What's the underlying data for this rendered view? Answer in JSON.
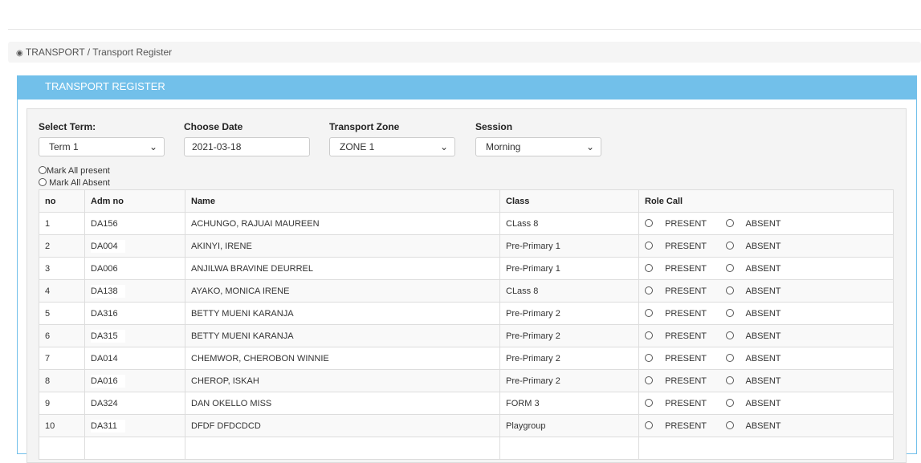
{
  "breadcrumb": {
    "icon": "dashboard-icon",
    "section": "TRANSPORT",
    "separator": " / ",
    "page": "Transport Register"
  },
  "panel": {
    "title": "TRANSPORT REGISTER"
  },
  "filters": {
    "term": {
      "label": "Select Term:",
      "value": "Term 1"
    },
    "date": {
      "label": "Choose Date",
      "value": "2021-03-18"
    },
    "zone": {
      "label": "Transport Zone",
      "value": "ZONE 1"
    },
    "session": {
      "label": "Session",
      "value": "Morning"
    }
  },
  "mark_all_present": "Mark All present",
  "mark_all_absent": "Mark All Absent",
  "table": {
    "headers": [
      "no",
      "Adm no",
      "Name",
      "Class",
      "Role Call"
    ],
    "present_label": "PRESENT",
    "absent_label": "ABSENT",
    "rows": [
      {
        "no": "1",
        "adm": "DA156",
        "name": "ACHUNGO, RAJUAI MAUREEN",
        "class": "CLass 8"
      },
      {
        "no": "2",
        "adm": "DA004",
        "name": "AKINYI, IRENE",
        "class": "Pre-Primary 1"
      },
      {
        "no": "3",
        "adm": "DA006",
        "name": "ANJILWA BRAVINE DEURREL",
        "class": "Pre-Primary 1"
      },
      {
        "no": "4",
        "adm": "DA138",
        "name": "AYAKO, MONICA IRENE",
        "class": "CLass 8"
      },
      {
        "no": "5",
        "adm": "DA316",
        "name": "BETTY MUENI KARANJA",
        "class": "Pre-Primary 2"
      },
      {
        "no": "6",
        "adm": "DA315",
        "name": "BETTY MUENI KARANJA",
        "class": "Pre-Primary 2"
      },
      {
        "no": "7",
        "adm": "DA014",
        "name": "CHEMWOR, CHEROBON WINNIE",
        "class": "Pre-Primary 2"
      },
      {
        "no": "8",
        "adm": "DA016",
        "name": "CHEROP, ISKAH",
        "class": "Pre-Primary 2"
      },
      {
        "no": "9",
        "adm": "DA324",
        "name": "DAN OKELLO MISS",
        "class": "FORM 3"
      },
      {
        "no": "10",
        "adm": "DA311",
        "name": "DFDF DFDCDCD",
        "class": "Playgroup"
      },
      {
        "no": "",
        "adm": "",
        "name": "",
        "class": ""
      }
    ]
  }
}
